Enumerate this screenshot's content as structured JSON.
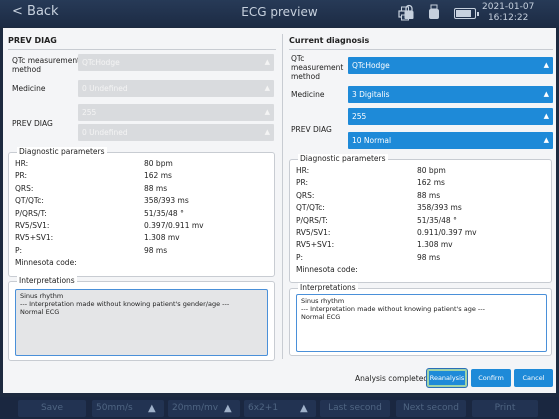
{
  "topbar": {
    "back_label": "< Back",
    "title": "ECG preview",
    "date": "2021-01-07",
    "time": "16:12:22",
    "battery_level": 0.85,
    "icons": [
      "printer-icon",
      "lock-icon",
      "usb-icon",
      "battery-icon"
    ]
  },
  "prev": {
    "section_title": "PREV DIAG",
    "qtc_label": "QTc measurement method",
    "qtc_value": "QTcHodge",
    "medicine_label": "Medicine",
    "medicine_value": "0 Undefined",
    "prevdiag_label": "PREV DIAG",
    "prevdiag_code": "255",
    "prevdiag_value": "0 Undefined",
    "params_title": "Diagnostic parameters",
    "params": [
      {
        "label": "HR:",
        "value": "80  bpm"
      },
      {
        "label": "PR:",
        "value": "162  ms"
      },
      {
        "label": "QRS:",
        "value": "88  ms"
      },
      {
        "label": "QT/QTc:",
        "value": "358/393  ms"
      },
      {
        "label": "P/QRS/T:",
        "value": "51/35/48  °"
      },
      {
        "label": "RV5/SV1:",
        "value": "0.397/0.911  mv"
      },
      {
        "label": "RV5+SV1:",
        "value": "1.308  mv"
      },
      {
        "label": "P:",
        "value": "98  ms"
      },
      {
        "label": "Minnesota code:",
        "value": ""
      }
    ],
    "interp_title": "Interpretations",
    "interp_lines": [
      "Sinus rhythm",
      "--- Interpretation made without knowing patient's gender/age ---",
      "Normal ECG"
    ]
  },
  "current": {
    "section_title": "Current diagnosis",
    "qtc_label": "QTc measurement method",
    "qtc_value": "QTcHodge",
    "medicine_label": "Medicine",
    "medicine_value": "3 Digitalis",
    "prevdiag_label": "PREV DIAG",
    "prevdiag_code": "255",
    "prevdiag_value": "10 Normal",
    "params_title": "Diagnostic parameters",
    "params": [
      {
        "label": "HR:",
        "value": "80  bpm"
      },
      {
        "label": "PR:",
        "value": "162  ms"
      },
      {
        "label": "QRS:",
        "value": "88  ms"
      },
      {
        "label": "QT/QTc:",
        "value": "358/393  ms"
      },
      {
        "label": "P/QRS/T:",
        "value": "51/35/48  °"
      },
      {
        "label": "RV5/SV1:",
        "value": "0.911/0.397  mv"
      },
      {
        "label": "RV5+SV1:",
        "value": "1.308  mv"
      },
      {
        "label": "P:",
        "value": "98  ms"
      },
      {
        "label": "Minnesota code:",
        "value": ""
      }
    ],
    "interp_title": "Interpretations",
    "interp_lines": [
      "Sinus rhythm",
      "--- Interpretation made without knowing patient's age ---",
      "Normal ECG"
    ]
  },
  "footer": {
    "status": "Analysis completed",
    "reanalysis_label": "Reanalysis",
    "confirm_label": "Confirm",
    "cancel_label": "Cancel"
  },
  "bottombar": {
    "save_label": "Save",
    "speed_label": "50mm/s",
    "gain_label": "20mm/mv",
    "layout_label": "6x2+1",
    "last_label": "Last second",
    "next_label": "Next second",
    "print_label": "Print"
  },
  "colors": {
    "accent": "#1e8ad8",
    "disabled": "#d9dbde",
    "topbar": "#1c2b44"
  }
}
